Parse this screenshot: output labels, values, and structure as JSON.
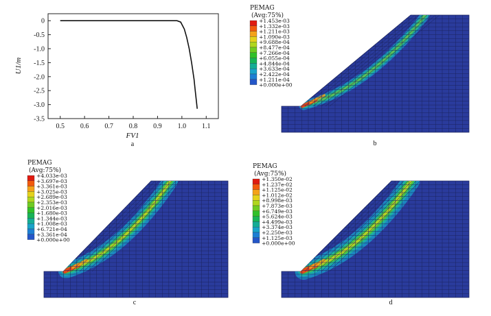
{
  "chart_data": {
    "type": "line",
    "title": "",
    "xlabel": "FV1",
    "ylabel": "U1/m",
    "xlim": [
      0.45,
      1.15
    ],
    "ylim": [
      -3.5,
      0.25
    ],
    "xticks": [
      "0.5",
      "0.6",
      "0.7",
      "0.8",
      "0.9",
      "1.0",
      "1.1"
    ],
    "yticks": [
      "0",
      "-0.5",
      "-1.0",
      "-1.5",
      "-2.0",
      "-2.5",
      "-3.0",
      "-3.5"
    ],
    "series": [
      {
        "x": [
          0.5,
          0.6,
          0.7,
          0.8,
          0.9,
          0.95,
          0.98,
          0.995,
          1.01,
          1.02,
          1.03,
          1.04,
          1.05,
          1.055,
          1.06,
          1.063
        ],
        "y": [
          0,
          0,
          0,
          0,
          0,
          0,
          0,
          -0.05,
          -0.3,
          -0.6,
          -1.0,
          -1.5,
          -2.1,
          -2.5,
          -2.9,
          -3.15
        ]
      }
    ]
  },
  "panels": {
    "a": {
      "label": "a"
    },
    "b": {
      "label": "b",
      "legend_title": "PEMAG",
      "legend_subtitle": "(Avg:75%)",
      "legend_values": [
        "+1.453e-03",
        "+1.332e-03",
        "+1.211e-03",
        "+1.090e-03",
        "+9.688e-04",
        "+8.477e-04",
        "+7.266e-04",
        "+6.055e-04",
        "+4.844e-04",
        "+3.633e-04",
        "+2.422e-04",
        "+1.211e-04",
        "+0.000e+00"
      ],
      "band_intensity": 0.35
    },
    "c": {
      "label": "c",
      "legend_title": "PEMAG",
      "legend_subtitle": "(Avg:75%)",
      "legend_values": [
        "+4.033e-03",
        "+3.697e-03",
        "+3.361e-03",
        "+3.025e-03",
        "+2.689e-03",
        "+2.353e-03",
        "+2.016e-03",
        "+1.680e-03",
        "+1.344e-03",
        "+1.008e-03",
        "+6.721e-04",
        "+3.361e-04",
        "+0.000e+00"
      ],
      "band_intensity": 0.7
    },
    "d": {
      "label": "d",
      "legend_title": "PEMAG",
      "legend_subtitle": "(Avg:75%)",
      "legend_values": [
        "+1.350e-02",
        "+1.237e-02",
        "+1.125e-02",
        "+1.012e-02",
        "+8.998e-03",
        "+7.873e-03",
        "+6.749e-03",
        "+5.624e-03",
        "+4.499e-03",
        "+3.374e-03",
        "+2.250e-03",
        "+1.125e-03",
        "+0.000e+00"
      ],
      "band_intensity": 0.85
    }
  },
  "colors": {
    "legend": [
      "#e01b10",
      "#f25a0c",
      "#f4a21a",
      "#e4d21c",
      "#b0d61e",
      "#6fcc22",
      "#31c02a",
      "#18b457",
      "#15ad95",
      "#19a4c9",
      "#1d7fd4",
      "#2456c8",
      "#2a3aa6"
    ],
    "mesh_fill": "#2a3b9c",
    "mesh_line": "#1b245e"
  }
}
